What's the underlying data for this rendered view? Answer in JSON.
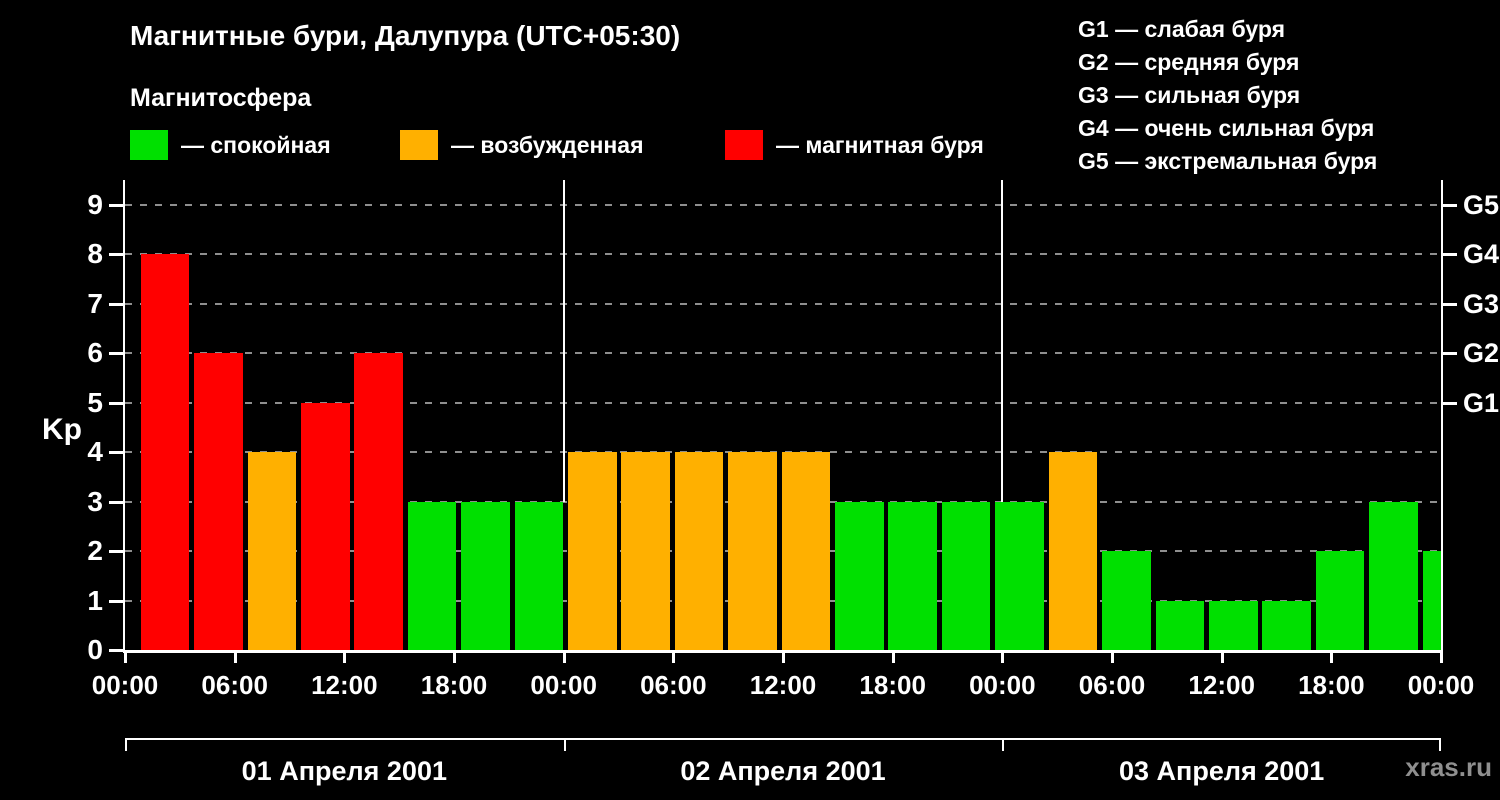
{
  "header": {
    "title": "Магнитные бури, Далупура (UTC+05:30)",
    "subtitle": "Магнитосфера"
  },
  "legend": {
    "items": [
      {
        "id": "quiet",
        "label": "— спокойная",
        "color": "#00e000"
      },
      {
        "id": "unsettled",
        "label": "— возбужденная",
        "color": "#ffb000"
      },
      {
        "id": "storm",
        "label": "— магнитная буря",
        "color": "#ff0000"
      }
    ]
  },
  "storm_scale": {
    "items": [
      "G1 — слабая буря",
      "G2 — средняя буря",
      "G3 — сильная буря",
      "G4 — очень сильная буря",
      "G5 — экстремальная буря"
    ]
  },
  "watermark": "xras.ru",
  "chart_data": {
    "type": "bar",
    "title": "Магнитные бури, Далупура (UTC+05:30)",
    "ylabel": "Kp",
    "ylim": [
      0,
      9.5
    ],
    "yticks": [
      0,
      1,
      2,
      3,
      4,
      5,
      6,
      7,
      8,
      9
    ],
    "grid": "horizontal-dashed-gray",
    "background": "#000000",
    "hours_total": 72,
    "bar_interval_hours": 3,
    "right_axis": [
      {
        "kp": 5,
        "label": "G1"
      },
      {
        "kp": 6,
        "label": "G2"
      },
      {
        "kp": 7,
        "label": "G3"
      },
      {
        "kp": 8,
        "label": "G4"
      },
      {
        "kp": 9,
        "label": "G5"
      }
    ],
    "hour_ticks": [
      {
        "hour": 0,
        "label": "00:00"
      },
      {
        "hour": 6,
        "label": "06:00"
      },
      {
        "hour": 12,
        "label": "12:00"
      },
      {
        "hour": 18,
        "label": "18:00"
      },
      {
        "hour": 24,
        "label": "00:00"
      },
      {
        "hour": 30,
        "label": "06:00"
      },
      {
        "hour": 36,
        "label": "12:00"
      },
      {
        "hour": 42,
        "label": "18:00"
      },
      {
        "hour": 48,
        "label": "00:00"
      },
      {
        "hour": 54,
        "label": "06:00"
      },
      {
        "hour": 60,
        "label": "12:00"
      },
      {
        "hour": 66,
        "label": "18:00"
      },
      {
        "hour": 72,
        "label": "00:00"
      }
    ],
    "days": [
      {
        "label": "01 Апреля 2001",
        "kp_3h": [
          8,
          6,
          4,
          5,
          6,
          3,
          3,
          3
        ]
      },
      {
        "label": "02 Апреля 2001",
        "kp_3h": [
          4,
          4,
          4,
          4,
          4,
          3,
          3,
          3
        ]
      },
      {
        "label": "03 Апреля 2001",
        "kp_3h": [
          3,
          4,
          2,
          1,
          1,
          1,
          2,
          3
        ]
      }
    ],
    "partial_next_bar_kp": 2,
    "color_rule": {
      "storm_min_kp": 5,
      "unsettled_min_kp": 4
    },
    "bar_colors": {
      "quiet": "#00e000",
      "unsettled": "#ffb000",
      "storm": "#ff0000"
    }
  }
}
